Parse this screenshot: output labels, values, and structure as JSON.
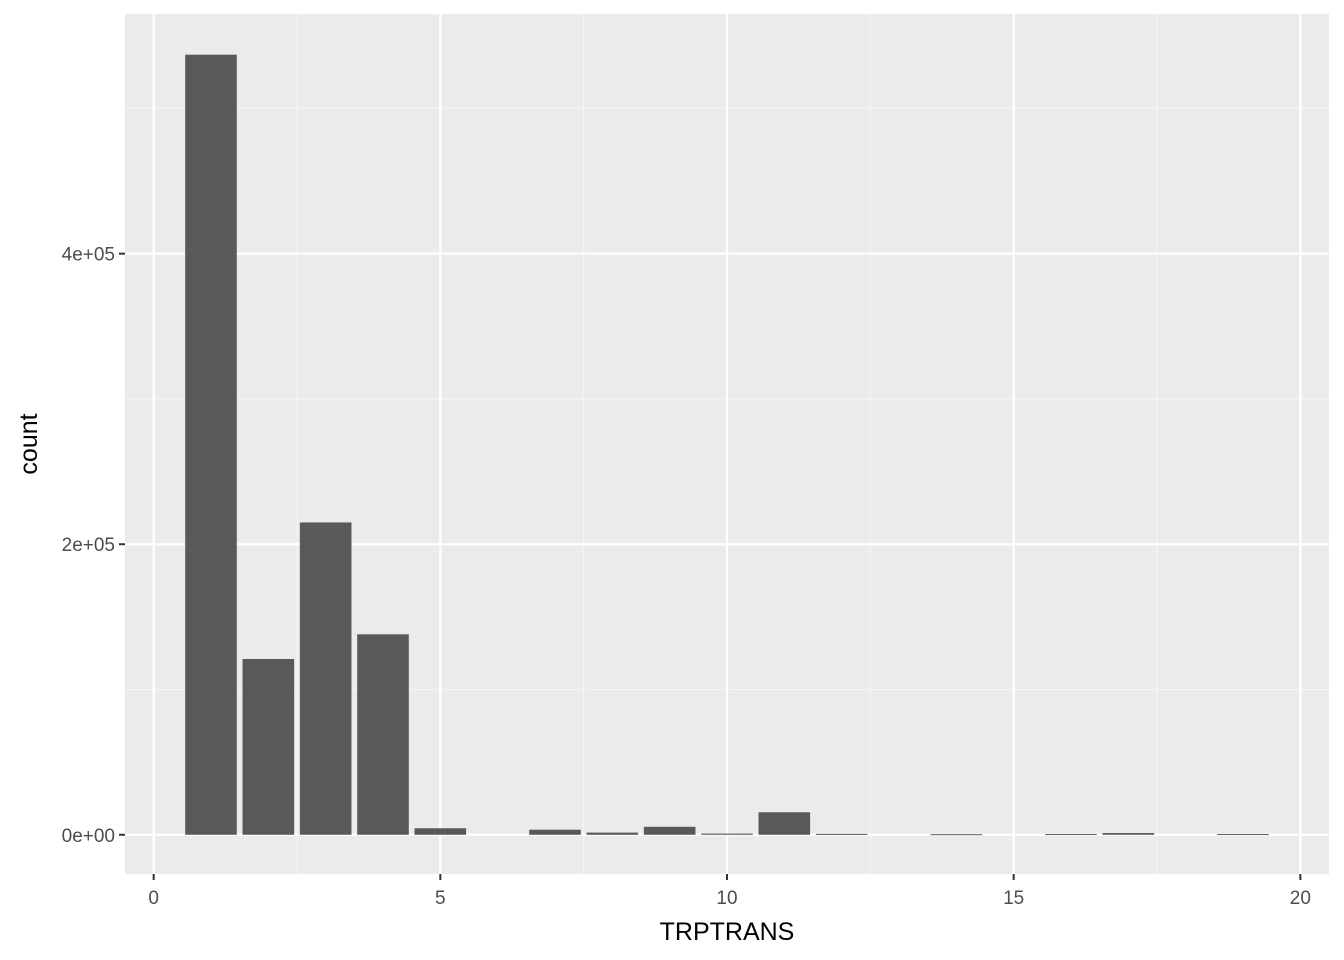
{
  "chart_data": {
    "type": "bar",
    "title": "",
    "xlabel": "TRPTRANS",
    "ylabel": "count",
    "x": [
      1,
      2,
      3,
      4,
      5,
      7,
      8,
      9,
      10,
      11,
      12,
      14,
      16,
      17,
      19
    ],
    "values": [
      537000,
      121000,
      215000,
      138000,
      4500,
      3500,
      1500,
      5500,
      800,
      15500,
      600,
      400,
      500,
      1200,
      500
    ],
    "xlim": [
      -0.5,
      20.5
    ],
    "ylim": [
      -27000,
      565000
    ],
    "x_ticks": [
      0,
      5,
      10,
      15,
      20
    ],
    "x_tick_labels": [
      "0",
      "5",
      "10",
      "15",
      "20"
    ],
    "y_ticks": [
      0,
      200000,
      400000
    ],
    "y_tick_labels": [
      "0e+00",
      "2e+05",
      "4e+05"
    ],
    "bar_width": 0.9,
    "grid": true,
    "colors": {
      "panel_background": "#ebebeb",
      "grid_major": "#ffffff",
      "grid_minor": "#f5f5f5",
      "bar_fill": "#595959",
      "tick_text": "#4d4d4d",
      "tick_mark": "#333333"
    }
  }
}
